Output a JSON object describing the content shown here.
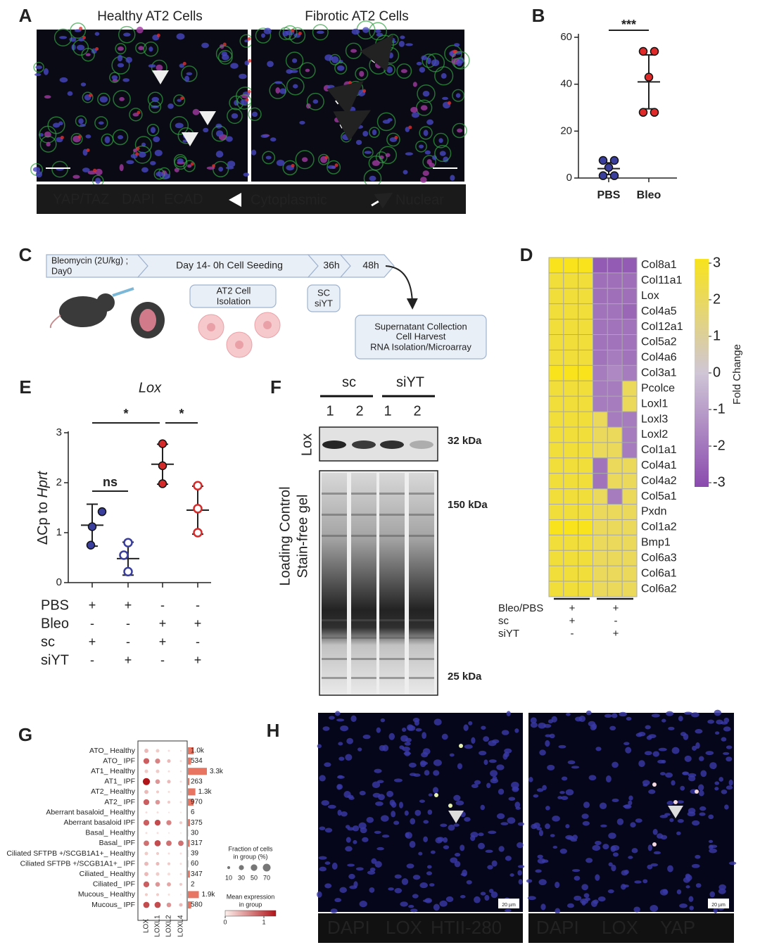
{
  "panel_labels": [
    "A",
    "B",
    "C",
    "D",
    "E",
    "F",
    "G",
    "H"
  ],
  "panel_a": {
    "titles": [
      "Healthy AT2 Cells",
      "Fibrotic AT2 Cells"
    ],
    "legend": [
      {
        "label": "YAP/TAZ",
        "color": "#e0302a"
      },
      {
        "label": "DAPI",
        "color": "#4a4fc4"
      },
      {
        "label": "ECAD",
        "color": "#34b040"
      }
    ],
    "arrow_legend": [
      "Cytoplasmic",
      "Nuclear"
    ]
  },
  "panel_b": {
    "type": "scatter",
    "categories": [
      "PBS",
      "Bleo"
    ],
    "groups": [
      {
        "values": [
          7.5,
          7.5,
          4.5,
          1,
          1
        ],
        "mean": 4,
        "sd": 2.5,
        "color": "#3a3f9e"
      },
      {
        "values": [
          54,
          54,
          43,
          28,
          28
        ],
        "mean": 41,
        "sd": 11.5,
        "color": "#e02a2a"
      }
    ],
    "ylim": [
      0,
      60
    ],
    "yticks": [
      0,
      20,
      40,
      60
    ],
    "significance": [
      {
        "label": "***",
        "from": 0,
        "to": 1
      }
    ]
  },
  "panel_c": {
    "timeline": [
      [
        "Bleomycin (2U/kg) ;",
        "Day0"
      ],
      [
        "Day 14- 0h Cell Seeding"
      ],
      [
        "36h"
      ],
      [
        "48h"
      ]
    ],
    "boxes": [
      [
        "AT2 Cell",
        "Isolation"
      ],
      [
        "SC",
        "siYT"
      ],
      [
        "Supernatant Collection",
        "Cell Harvest",
        "RNA Isolation/Microarray"
      ]
    ]
  },
  "panel_d": {
    "type": "heatmap",
    "genes": [
      "Col8a1",
      "Col11a1",
      "Lox",
      "Col4a5",
      "Col12a1",
      "Col5a2",
      "Col4a6",
      "Col3a1",
      "Pcolce",
      "Loxl1",
      "Loxl3",
      "Loxl2",
      "Col1a1",
      "Col4a1",
      "Col4a2",
      "Col5a1",
      "Pxdn",
      "Col1a2",
      "Bmp1",
      "Col6a3",
      "Col6a1",
      "Col6a2"
    ],
    "values": [
      [
        3,
        3,
        3,
        -2.6,
        -2.6,
        -2.6
      ],
      [
        2.5,
        2.5,
        2.5,
        -2.1,
        -2.1,
        -2.1
      ],
      [
        2.5,
        2.5,
        2.5,
        -2.1,
        -2.1,
        -2.1
      ],
      [
        2.5,
        2.5,
        2.5,
        -2,
        -2,
        -2.3
      ],
      [
        2.5,
        2.5,
        2.5,
        -2,
        -2,
        -2
      ],
      [
        2.5,
        2.5,
        2.5,
        -2,
        -2,
        -2
      ],
      [
        2.5,
        2.5,
        2.5,
        -2,
        -1.8,
        -2
      ],
      [
        3,
        3,
        3,
        -1.8,
        -1.5,
        -1.8
      ],
      [
        2.5,
        2.5,
        2.5,
        -1.8,
        -1.8,
        2
      ],
      [
        2.5,
        2.5,
        2.5,
        -1.8,
        -1.8,
        2
      ],
      [
        2.5,
        2.5,
        2.5,
        2,
        -1.8,
        -1.8
      ],
      [
        2.5,
        2.5,
        2.5,
        2,
        2,
        -1.8
      ],
      [
        2.5,
        2.5,
        2.5,
        2,
        2,
        -1.8
      ],
      [
        2.5,
        2.5,
        2.5,
        -2,
        2,
        2
      ],
      [
        2.5,
        2.5,
        2.5,
        -2,
        2,
        2
      ],
      [
        2.5,
        2.5,
        2.5,
        2,
        -1.8,
        2
      ],
      [
        2.5,
        2.5,
        2.5,
        2,
        2,
        2
      ],
      [
        3,
        3,
        3,
        2,
        2,
        2
      ],
      [
        2.5,
        2.5,
        2.5,
        2,
        2,
        2
      ],
      [
        2.5,
        2.5,
        2.5,
        2,
        2,
        2
      ],
      [
        2.5,
        2.5,
        2.5,
        2,
        2,
        2
      ],
      [
        2.5,
        2.5,
        2.5,
        2,
        2,
        2
      ]
    ],
    "colorbar": {
      "lim": [
        -3,
        3
      ],
      "ticks": [
        3,
        2,
        1,
        0,
        -1,
        -2,
        -3
      ],
      "label": "Fold Change"
    },
    "conditions": [
      {
        "name": "Bleo/PBS",
        "signs": [
          "+",
          "+"
        ]
      },
      {
        "name": "sc",
        "signs": [
          "+",
          "-"
        ]
      },
      {
        "name": "siYT",
        "signs": [
          "-",
          "+"
        ]
      }
    ]
  },
  "panel_e": {
    "type": "scatter",
    "title": "Lox",
    "ylabel": [
      "ΔCp to ",
      "Hprt"
    ],
    "groups": [
      {
        "values": [
          1.42,
          1.12,
          0.75
        ],
        "mean": 1.15,
        "sd": 0.42,
        "color": "#3a3f9e",
        "filled": true
      },
      {
        "values": [
          0.8,
          0.55,
          0.22
        ],
        "mean": 0.48,
        "sd": 0.33,
        "color": "#3a3f9e",
        "filled": false
      },
      {
        "values": [
          2.78,
          2.34,
          1.98
        ],
        "mean": 2.37,
        "sd": 0.4,
        "color": "#d42a2a",
        "filled": true
      },
      {
        "values": [
          1.94,
          1.48,
          1.0
        ],
        "mean": 1.45,
        "sd": 0.48,
        "color": "#d42a2a",
        "filled": false
      }
    ],
    "ylim": [
      0,
      3
    ],
    "yticks": [
      0,
      1,
      2,
      3
    ],
    "significance": [
      {
        "label": "*",
        "from": 0,
        "to": 2
      },
      {
        "label": "*",
        "from": 2,
        "to": 3
      },
      {
        "label": "ns",
        "from": 0,
        "to": 1
      }
    ],
    "conditions": [
      {
        "name": "PBS",
        "signs": [
          "+",
          "+",
          "-",
          "-"
        ]
      },
      {
        "name": "Bleo",
        "signs": [
          "-",
          "-",
          "+",
          "+"
        ]
      },
      {
        "name": "sc",
        "signs": [
          "+",
          "-",
          "+",
          "-"
        ]
      },
      {
        "name": "siYT",
        "signs": [
          "-",
          "+",
          "-",
          "+"
        ]
      }
    ]
  },
  "panel_f": {
    "groups": [
      "sc",
      "siYT"
    ],
    "lanes": [
      "1",
      "2",
      "1",
      "2"
    ],
    "lox_label": "Lox",
    "loading_label": [
      "Loading Control",
      "Stain-free gel"
    ],
    "markers": [
      "32 kDa",
      "150 kDa",
      "25 kDa"
    ]
  },
  "panel_g": {
    "type": "dotplot",
    "columns": [
      "LOX",
      "LOXL1",
      "LOXL2",
      "LOXL4"
    ],
    "rows": [
      {
        "label": "ATO_ Healthy",
        "count": 1000,
        "count_label": "1.0k",
        "cells": [
          [
            20,
            0.3
          ],
          [
            15,
            0.2
          ],
          [
            5,
            0.1
          ],
          [
            3,
            0.1
          ]
        ]
      },
      {
        "label": "ATO_ IPF",
        "count": 534,
        "count_label": "534",
        "cells": [
          [
            40,
            0.8
          ],
          [
            30,
            0.6
          ],
          [
            15,
            0.3
          ],
          [
            5,
            0.1
          ]
        ]
      },
      {
        "label": "AT1_ Healthy",
        "count": 3300,
        "count_label": "3.3k",
        "cells": [
          [
            15,
            0.2
          ],
          [
            15,
            0.2
          ],
          [
            5,
            0.1
          ],
          [
            3,
            0.1
          ]
        ]
      },
      {
        "label": "AT1_ IPF",
        "count": 263,
        "count_label": "263",
        "cells": [
          [
            60,
            1.2
          ],
          [
            25,
            0.5
          ],
          [
            15,
            0.3
          ],
          [
            5,
            0.1
          ]
        ]
      },
      {
        "label": "AT2_ Healthy",
        "count": 1300,
        "count_label": "1.3k",
        "cells": [
          [
            20,
            0.3
          ],
          [
            10,
            0.2
          ],
          [
            5,
            0.1
          ],
          [
            3,
            0.1
          ]
        ]
      },
      {
        "label": "AT2_ IPF",
        "count": 970,
        "count_label": "970",
        "cells": [
          [
            40,
            0.8
          ],
          [
            25,
            0.5
          ],
          [
            10,
            0.2
          ],
          [
            5,
            0.1
          ]
        ]
      },
      {
        "label": "Aberrant basaloid_ Healthy",
        "count": 6,
        "count_label": "6",
        "cells": [
          [
            5,
            0.1
          ],
          [
            5,
            0.1
          ],
          [
            3,
            0.05
          ],
          [
            3,
            0.05
          ]
        ]
      },
      {
        "label": "Aberrant basaloid IPF",
        "count": 375,
        "count_label": "375",
        "cells": [
          [
            40,
            0.8
          ],
          [
            40,
            0.9
          ],
          [
            30,
            0.6
          ],
          [
            10,
            0.2
          ]
        ]
      },
      {
        "label": "Basal_ Healthy",
        "count": 30,
        "count_label": "30",
        "cells": [
          [
            5,
            0.1
          ],
          [
            5,
            0.1
          ],
          [
            3,
            0.05
          ],
          [
            3,
            0.05
          ]
        ]
      },
      {
        "label": "Basal_ IPF",
        "count": 317,
        "count_label": "317",
        "cells": [
          [
            35,
            0.7
          ],
          [
            45,
            0.9
          ],
          [
            35,
            0.7
          ],
          [
            35,
            0.7
          ]
        ]
      },
      {
        "label": "Ciliated SFTPB +/SCGB1A1+_ Healthy",
        "count": 39,
        "count_label": "39",
        "cells": [
          [
            15,
            0.2
          ],
          [
            10,
            0.2
          ],
          [
            5,
            0.1
          ],
          [
            5,
            0.1
          ]
        ]
      },
      {
        "label": "Ciliated SFTPB +/SCGB1A1+_ IPF",
        "count": 60,
        "count_label": "60",
        "cells": [
          [
            20,
            0.3
          ],
          [
            15,
            0.3
          ],
          [
            10,
            0.2
          ],
          [
            5,
            0.1
          ]
        ]
      },
      {
        "label": "Ciliated_ Healthy",
        "count": 347,
        "count_label": "347",
        "cells": [
          [
            20,
            0.3
          ],
          [
            15,
            0.2
          ],
          [
            10,
            0.1
          ],
          [
            5,
            0.1
          ]
        ]
      },
      {
        "label": "Ciliated_ IPF",
        "count": 2,
        "count_label": "2",
        "cells": [
          [
            40,
            0.8
          ],
          [
            25,
            0.5
          ],
          [
            20,
            0.4
          ],
          [
            10,
            0.2
          ]
        ]
      },
      {
        "label": "Mucous_ Healthy",
        "count": 1900,
        "count_label": "1.9k",
        "cells": [
          [
            10,
            0.2
          ],
          [
            10,
            0.2
          ],
          [
            5,
            0.1
          ],
          [
            3,
            0.05
          ]
        ]
      },
      {
        "label": "Mucous_ IPF",
        "count": 580,
        "count_label": "580",
        "cells": [
          [
            45,
            0.9
          ],
          [
            45,
            0.9
          ],
          [
            25,
            0.5
          ],
          [
            15,
            0.3
          ]
        ]
      }
    ],
    "size_legend": {
      "title": [
        "Fraction of cells",
        "in group (%)"
      ],
      "ticks": [
        10,
        30,
        50,
        70
      ]
    },
    "color_legend": {
      "title": [
        "Mean expression",
        "in group"
      ],
      "lim": [
        0,
        1.2
      ],
      "ticks": [
        0,
        1
      ]
    }
  },
  "panel_h": {
    "left_legend": [
      {
        "label": "DAPI",
        "color": "#4a4fc4"
      },
      {
        "label": "LOX",
        "color": "#ffffff"
      },
      {
        "label": "HTII-280",
        "color": "#a8c82c"
      }
    ],
    "right_legend": [
      {
        "label": "DAPI",
        "color": "#4a4fc4"
      },
      {
        "label": "LOX",
        "color": "#ffffff"
      },
      {
        "label": "YAP",
        "color": "#e0302a"
      }
    ],
    "scale_bar": "20 µm"
  }
}
